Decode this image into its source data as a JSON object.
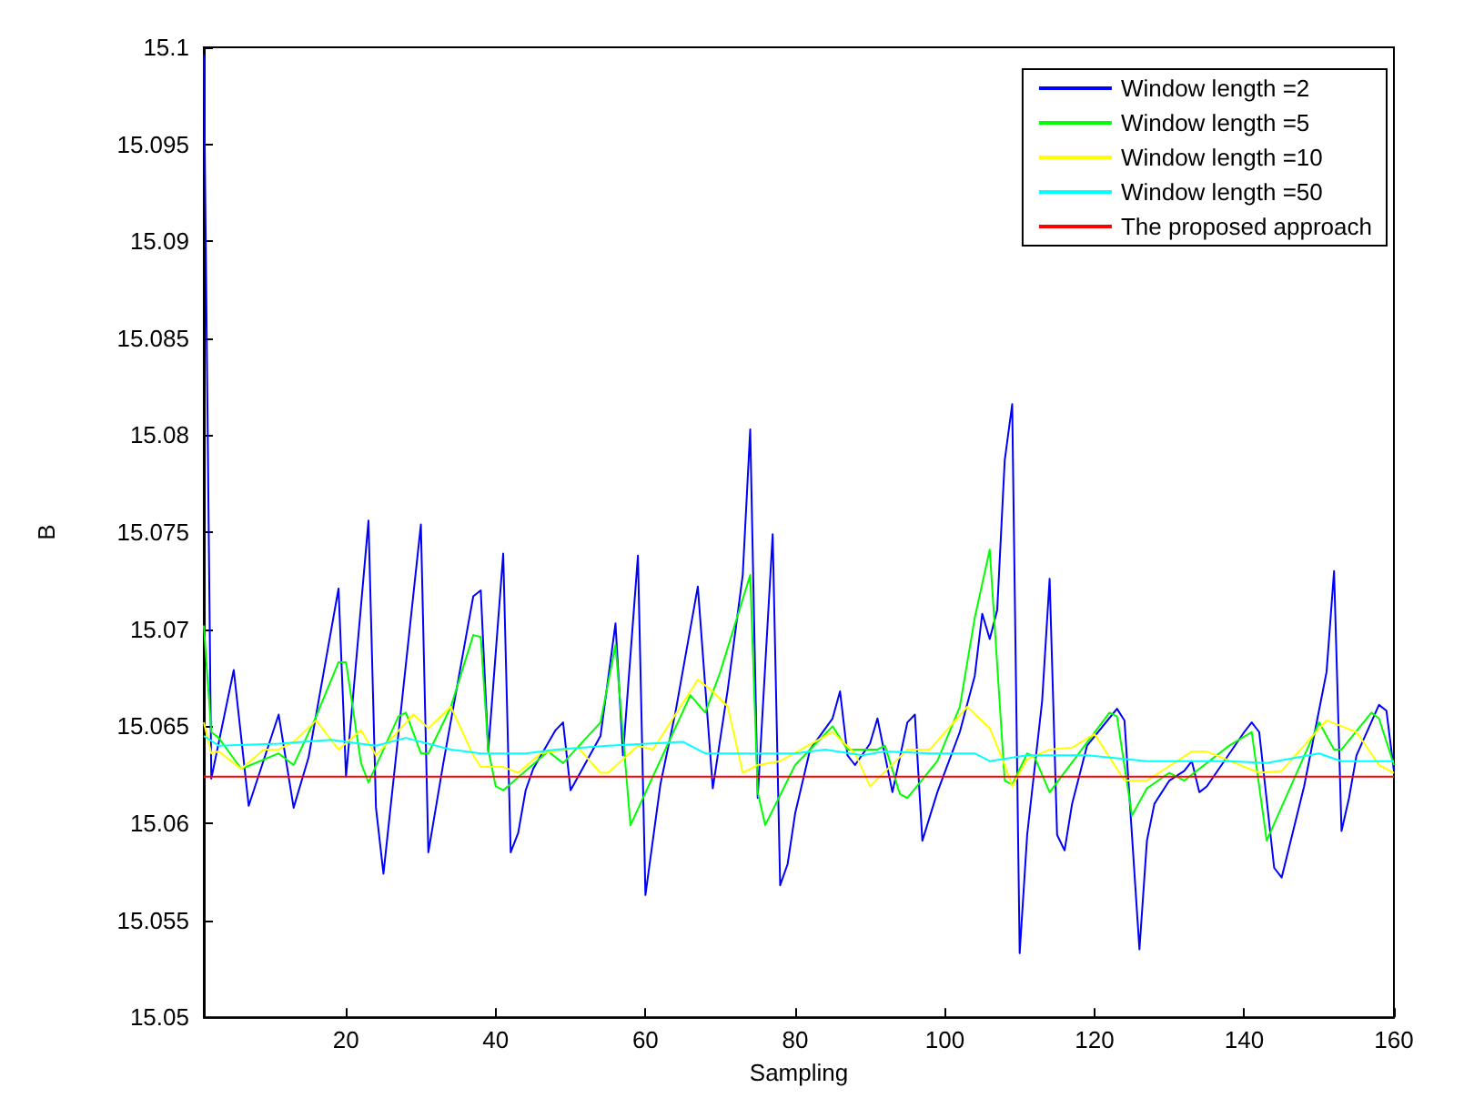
{
  "chart_data": {
    "type": "line",
    "xlabel": "Sampling",
    "ylabel": "B",
    "xlim": [
      1,
      160
    ],
    "xticks": [
      20,
      40,
      60,
      80,
      100,
      120,
      140,
      160
    ],
    "ylim": [
      15.05,
      15.1
    ],
    "yticks": [
      15.05,
      15.055,
      15.06,
      15.065,
      15.07,
      15.075,
      15.08,
      15.085,
      15.09,
      15.095,
      15.1
    ],
    "legend": "top right",
    "series": [
      {
        "name": "Window length =2",
        "color": "#0000ff",
        "x": [
          1,
          2,
          5,
          7,
          11,
          13,
          15,
          19,
          20,
          23,
          24,
          25,
          30,
          31,
          33,
          37,
          38,
          39,
          41,
          42,
          43,
          44,
          45,
          48,
          49,
          50,
          54,
          56,
          57,
          59,
          60,
          62,
          64,
          67,
          69,
          71,
          73,
          74,
          75,
          77,
          78,
          79,
          80,
          82,
          85,
          86,
          87,
          88,
          90,
          91,
          93,
          95,
          96,
          97,
          99,
          102,
          104,
          105,
          106,
          107,
          108,
          109,
          110,
          111,
          113,
          114,
          115,
          116,
          117,
          119,
          123,
          124,
          126,
          127,
          128,
          130,
          132,
          133,
          134,
          135,
          140,
          141,
          142,
          144,
          145,
          148,
          151,
          152,
          153,
          154,
          155,
          158,
          159,
          160
        ],
        "values": [
          15.0996,
          15.0623,
          15.0679,
          15.0609,
          15.0656,
          15.0608,
          15.0634,
          15.0721,
          15.0624,
          15.0756,
          15.0608,
          15.0574,
          15.0754,
          15.0585,
          15.0631,
          15.0717,
          15.072,
          15.0637,
          15.0739,
          15.0585,
          15.0595,
          15.0617,
          15.0628,
          15.0648,
          15.0652,
          15.0617,
          15.0645,
          15.0703,
          15.0635,
          15.0738,
          15.0563,
          15.062,
          15.0657,
          15.0722,
          15.0618,
          15.0669,
          15.0728,
          15.0803,
          15.0613,
          15.0749,
          15.0568,
          15.0579,
          15.0605,
          15.0638,
          15.0654,
          15.0668,
          15.0635,
          15.063,
          15.0641,
          15.0654,
          15.0616,
          15.0652,
          15.0656,
          15.0591,
          15.0616,
          15.0647,
          15.0676,
          15.0708,
          15.0695,
          15.071,
          15.0787,
          15.0816,
          15.0533,
          15.0594,
          15.0663,
          15.0726,
          15.0594,
          15.0586,
          15.061,
          15.064,
          15.0659,
          15.0653,
          15.0535,
          15.0591,
          15.061,
          15.0622,
          15.0627,
          15.0632,
          15.0616,
          15.0619,
          15.0647,
          15.0652,
          15.0647,
          15.0577,
          15.0572,
          15.0619,
          15.0678,
          15.073,
          15.0596,
          15.0613,
          15.0635,
          15.0661,
          15.0658,
          15.0627
        ]
      },
      {
        "name": "Window length =5",
        "color": "#00ff00",
        "x": [
          1,
          2,
          3,
          6,
          11,
          13,
          16,
          19,
          20,
          22,
          23,
          27,
          28,
          30,
          31,
          34,
          37,
          38,
          39,
          40,
          41,
          47,
          49,
          54,
          56,
          58,
          66,
          68,
          70,
          74,
          75,
          76,
          80,
          85,
          87,
          91,
          92,
          94,
          95,
          99,
          102,
          104,
          106,
          108,
          109,
          111,
          112,
          114,
          122,
          123,
          125,
          127,
          130,
          132,
          138,
          141,
          143,
          150,
          152,
          153,
          157,
          158,
          160
        ],
        "values": [
          15.0702,
          15.0647,
          15.0644,
          15.0628,
          15.0636,
          15.063,
          15.0655,
          15.0683,
          15.0683,
          15.0631,
          15.0621,
          15.0655,
          15.0657,
          15.0636,
          15.0636,
          15.066,
          15.0697,
          15.0696,
          15.0638,
          15.0619,
          15.0617,
          15.0637,
          15.0631,
          15.0652,
          15.0692,
          15.0599,
          15.0666,
          15.0657,
          15.0678,
          15.0728,
          15.0616,
          15.0599,
          15.063,
          15.065,
          15.0638,
          15.0638,
          15.064,
          15.0615,
          15.0613,
          15.0632,
          15.066,
          15.0706,
          15.0741,
          15.0622,
          15.062,
          15.0636,
          15.0634,
          15.0616,
          15.0657,
          15.0655,
          15.0604,
          15.0618,
          15.0626,
          15.0622,
          15.064,
          15.0647,
          15.0591,
          15.0652,
          15.0638,
          15.0638,
          15.0657,
          15.0654,
          15.063
        ]
      },
      {
        "name": "Window length =10",
        "color": "#ffff00",
        "x": [
          1,
          2,
          3,
          6,
          9,
          11,
          13,
          16,
          19,
          22,
          24,
          29,
          31,
          34,
          37,
          38,
          41,
          43,
          46,
          51,
          54,
          55,
          59,
          61,
          67,
          69,
          71,
          73,
          75,
          78,
          85,
          88,
          90,
          95,
          98,
          103,
          106,
          108,
          109,
          111,
          114,
          117,
          120,
          124,
          127,
          133,
          135,
          142,
          145,
          151,
          155,
          158,
          160
        ],
        "values": [
          15.0652,
          15.0636,
          15.0637,
          15.0628,
          15.0638,
          15.0638,
          15.0642,
          15.0653,
          15.0638,
          15.0648,
          15.0635,
          15.0656,
          15.0649,
          15.066,
          15.0635,
          15.0629,
          15.0629,
          15.0626,
          15.0636,
          15.0639,
          15.0626,
          15.0626,
          15.064,
          15.0638,
          15.0674,
          15.0668,
          15.066,
          15.0626,
          15.063,
          15.0632,
          15.0647,
          15.0636,
          15.0619,
          15.0638,
          15.0638,
          15.066,
          15.0649,
          15.063,
          15.0619,
          15.0633,
          15.0638,
          15.0639,
          15.0646,
          15.0622,
          15.0622,
          15.0637,
          15.0637,
          15.0626,
          15.0627,
          15.0653,
          15.0647,
          15.063,
          15.0626
        ]
      },
      {
        "name": "Window length =50",
        "color": "#00ffff",
        "x": [
          1,
          3,
          11,
          18,
          24,
          28,
          34,
          38,
          44,
          48,
          55,
          65,
          68,
          80,
          84,
          89,
          92,
          98,
          104,
          106,
          111,
          119,
          127,
          138,
          143,
          150,
          153,
          158,
          160
        ],
        "values": [
          15.0645,
          15.064,
          15.0641,
          15.0643,
          15.064,
          15.0644,
          15.0638,
          15.0636,
          15.0636,
          15.0638,
          15.064,
          15.0642,
          15.0636,
          15.0636,
          15.0638,
          15.0635,
          15.0637,
          15.0636,
          15.0636,
          15.0632,
          15.0635,
          15.0635,
          15.0632,
          15.0632,
          15.0631,
          15.0636,
          15.0632,
          15.0632,
          15.0632
        ]
      },
      {
        "name": "The proposed approach",
        "color": "#ff0000",
        "x": [
          1,
          160
        ],
        "values": [
          15.0624,
          15.0624
        ]
      }
    ]
  }
}
